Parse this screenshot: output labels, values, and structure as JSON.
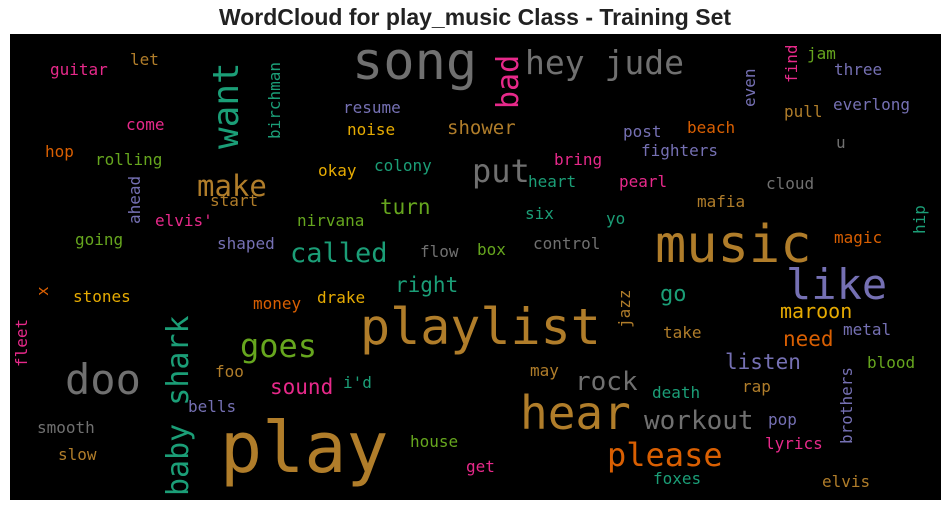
{
  "chart_data": {
    "type": "wordcloud",
    "title": "WordCloud for play_music Class - Training Set",
    "background": "#000000",
    "words": [
      {
        "text": "play",
        "color": "#b07d2a"
      },
      {
        "text": "playlist",
        "color": "#b07d2a"
      },
      {
        "text": "music",
        "color": "#b07d2a"
      },
      {
        "text": "song",
        "color": "#707070"
      },
      {
        "text": "hear",
        "color": "#b07d2a"
      },
      {
        "text": "like",
        "color": "#7570b3"
      },
      {
        "text": "doo",
        "color": "#707070"
      },
      {
        "text": "hey jude",
        "color": "#707070"
      },
      {
        "text": "want",
        "color": "#1b9e77"
      },
      {
        "text": "baby shark",
        "color": "#1b9e77"
      },
      {
        "text": "put",
        "color": "#707070"
      },
      {
        "text": "make",
        "color": "#b07d2a"
      },
      {
        "text": "goes",
        "color": "#66a61e"
      },
      {
        "text": "please",
        "color": "#d95f02"
      },
      {
        "text": "bad",
        "color": "#e7298a"
      },
      {
        "text": "called",
        "color": "#1b9e77"
      },
      {
        "text": "workout",
        "color": "#707070"
      },
      {
        "text": "rock",
        "color": "#707070"
      },
      {
        "text": "maroon",
        "color": "#e6ab02"
      },
      {
        "text": "listen",
        "color": "#7570b3"
      },
      {
        "text": "need",
        "color": "#d95f02"
      },
      {
        "text": "go",
        "color": "#1b9e77"
      },
      {
        "text": "right",
        "color": "#1b9e77"
      },
      {
        "text": "turn",
        "color": "#66a61e"
      },
      {
        "text": "sound",
        "color": "#e7298a"
      },
      {
        "text": "shower",
        "color": "#b07d2a"
      },
      {
        "text": "guitar",
        "color": "#e7298a"
      },
      {
        "text": "let",
        "color": "#b07d2a"
      },
      {
        "text": "birchman",
        "color": "#1b9e77"
      },
      {
        "text": "resume",
        "color": "#7570b3"
      },
      {
        "text": "noise",
        "color": "#e6ab02"
      },
      {
        "text": "come",
        "color": "#e7298a"
      },
      {
        "text": "hop",
        "color": "#d95f02"
      },
      {
        "text": "rolling",
        "color": "#66a61e"
      },
      {
        "text": "ahead",
        "color": "#7570b3"
      },
      {
        "text": "start",
        "color": "#b07d2a"
      },
      {
        "text": "elvis'",
        "color": "#e7298a"
      },
      {
        "text": "nirvana",
        "color": "#66a61e"
      },
      {
        "text": "going",
        "color": "#66a61e"
      },
      {
        "text": "shaped",
        "color": "#7570b3"
      },
      {
        "text": "okay",
        "color": "#e6ab02"
      },
      {
        "text": "colony",
        "color": "#1b9e77"
      },
      {
        "text": "bring",
        "color": "#e7298a"
      },
      {
        "text": "heart",
        "color": "#1b9e77"
      },
      {
        "text": "six",
        "color": "#1b9e77"
      },
      {
        "text": "yo",
        "color": "#1b9e77"
      },
      {
        "text": "pearl",
        "color": "#e7298a"
      },
      {
        "text": "mafia",
        "color": "#b07d2a"
      },
      {
        "text": "cloud",
        "color": "#707070"
      },
      {
        "text": "post",
        "color": "#7570b3"
      },
      {
        "text": "fighters",
        "color": "#7570b3"
      },
      {
        "text": "beach",
        "color": "#d95f02"
      },
      {
        "text": "even",
        "color": "#7570b3"
      },
      {
        "text": "find",
        "color": "#e7298a"
      },
      {
        "text": "jam",
        "color": "#66a61e"
      },
      {
        "text": "three",
        "color": "#7570b3"
      },
      {
        "text": "pull",
        "color": "#b07d2a"
      },
      {
        "text": "everlong",
        "color": "#7570b3"
      },
      {
        "text": "u",
        "color": "#707070"
      },
      {
        "text": "hip",
        "color": "#1b9e77"
      },
      {
        "text": "magic",
        "color": "#d95f02"
      },
      {
        "text": "control",
        "color": "#707070"
      },
      {
        "text": "flow",
        "color": "#707070"
      },
      {
        "text": "box",
        "color": "#66a61e"
      },
      {
        "text": "x",
        "color": "#d95f02"
      },
      {
        "text": "stones",
        "color": "#e6ab02"
      },
      {
        "text": "money",
        "color": "#d95f02"
      },
      {
        "text": "drake",
        "color": "#e6ab02"
      },
      {
        "text": "jazz",
        "color": "#b07d2a"
      },
      {
        "text": "take",
        "color": "#b07d2a"
      },
      {
        "text": "metal",
        "color": "#7570b3"
      },
      {
        "text": "fleet",
        "color": "#e7298a"
      },
      {
        "text": "foo",
        "color": "#b07d2a"
      },
      {
        "text": "i'd",
        "color": "#1b9e77"
      },
      {
        "text": "may",
        "color": "#b07d2a"
      },
      {
        "text": "blood",
        "color": "#66a61e"
      },
      {
        "text": "brothers",
        "color": "#7570b3"
      },
      {
        "text": "rap",
        "color": "#b07d2a"
      },
      {
        "text": "death",
        "color": "#1b9e77"
      },
      {
        "text": "bells",
        "color": "#7570b3"
      },
      {
        "text": "pop",
        "color": "#7570b3"
      },
      {
        "text": "lyrics",
        "color": "#e7298a"
      },
      {
        "text": "smooth",
        "color": "#707070"
      },
      {
        "text": "slow",
        "color": "#b07d2a"
      },
      {
        "text": "house",
        "color": "#66a61e"
      },
      {
        "text": "get",
        "color": "#e7298a"
      },
      {
        "text": "foxes",
        "color": "#1b9e77"
      },
      {
        "text": "elvis",
        "color": "#b07d2a"
      }
    ]
  }
}
